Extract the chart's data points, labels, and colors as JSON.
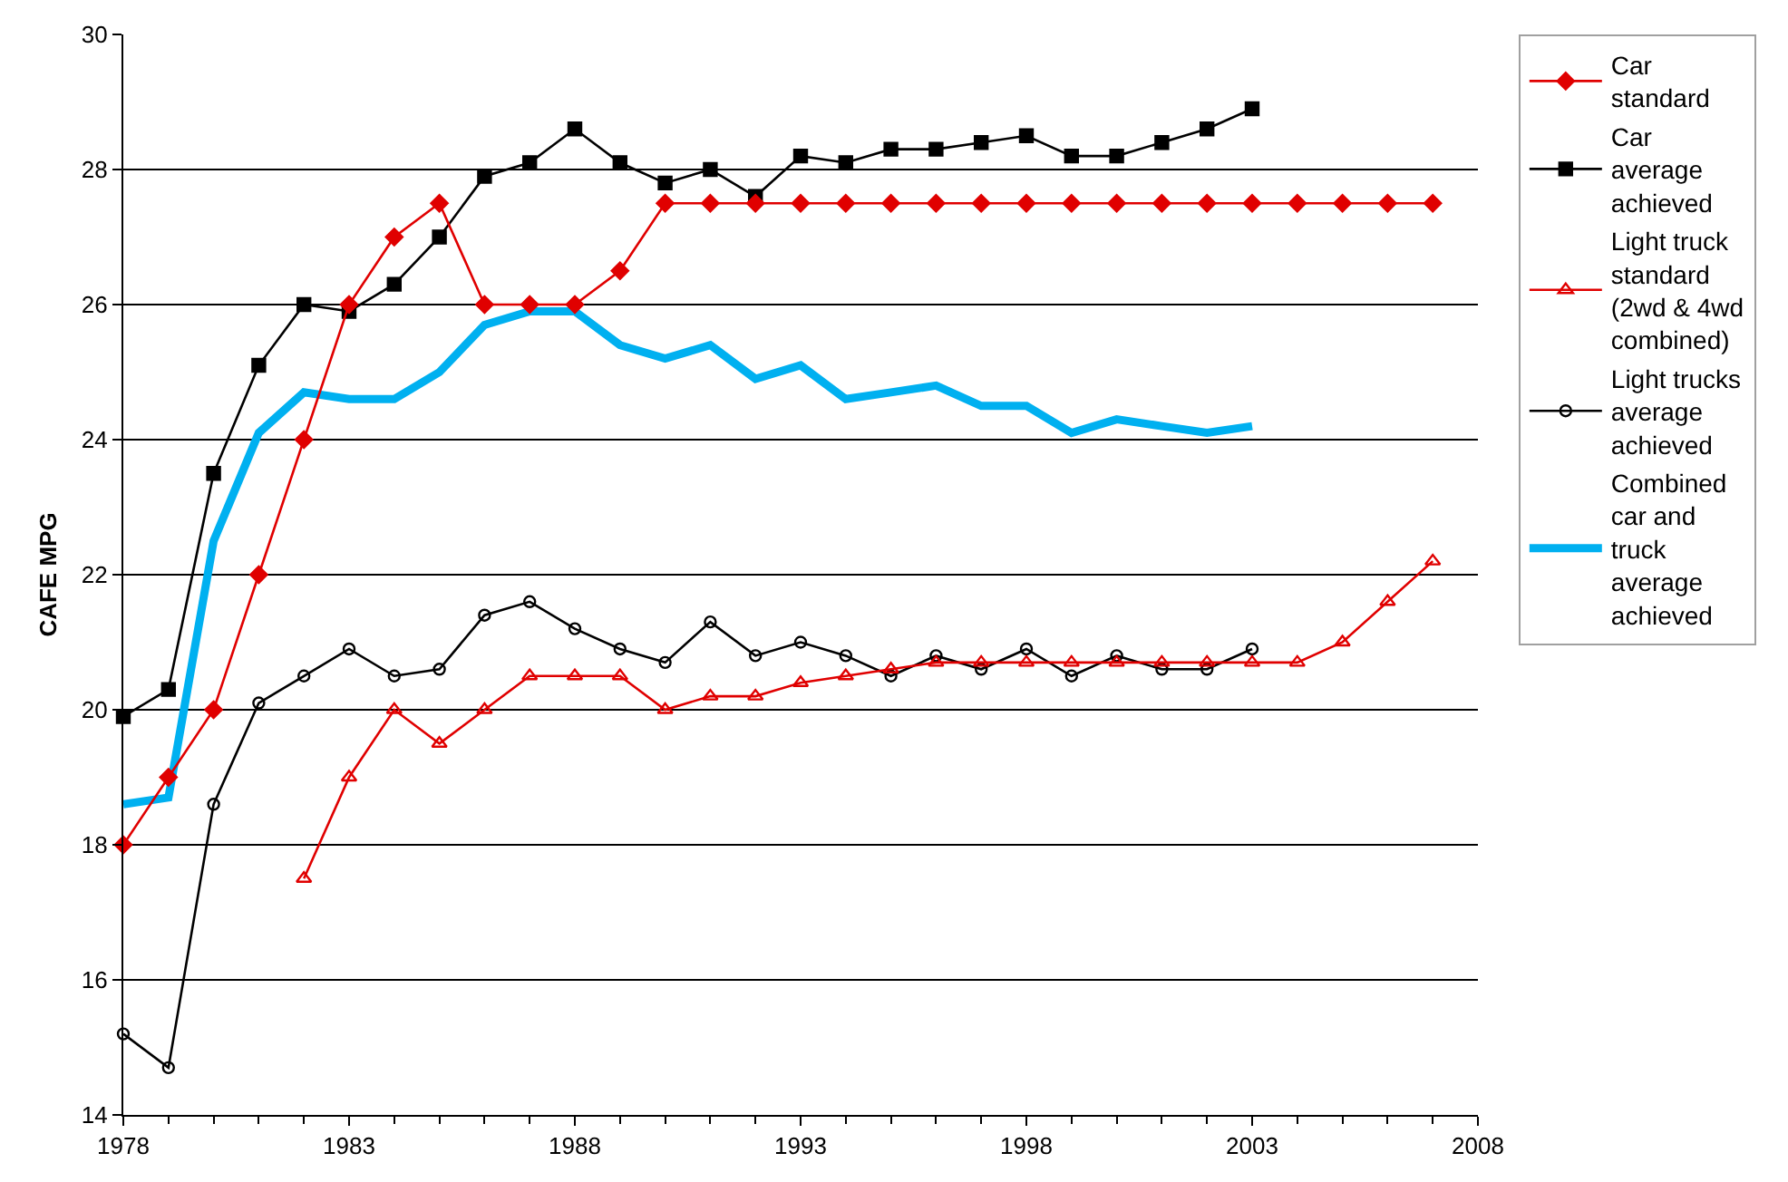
{
  "chart_data": {
    "type": "line",
    "ylabel": "CAFE MPG",
    "xlim": [
      1978,
      2008
    ],
    "xticks": [
      1978,
      1983,
      1988,
      1993,
      1998,
      2003,
      2008
    ],
    "ylim": [
      14,
      30
    ],
    "yticks": [
      14,
      16,
      18,
      20,
      22,
      24,
      26,
      28,
      30
    ],
    "grid": "y",
    "legend": "right",
    "line_style": "solid",
    "series": [
      {
        "name": "Car\nstandard",
        "color": "#e00000",
        "marker": "diamond",
        "x": [
          1978,
          1979,
          1980,
          1981,
          1982,
          1983,
          1984,
          1985,
          1986,
          1987,
          1988,
          1989,
          1990,
          1991,
          1992,
          1993,
          1994,
          1995,
          1996,
          1997,
          1998,
          1999,
          2000,
          2001,
          2002,
          2003,
          2004,
          2005,
          2006,
          2007
        ],
        "values": [
          18,
          19,
          20,
          22,
          24,
          26,
          27,
          27.5,
          26,
          26,
          26,
          26.5,
          27.5,
          27.5,
          27.5,
          27.5,
          27.5,
          27.5,
          27.5,
          27.5,
          27.5,
          27.5,
          27.5,
          27.5,
          27.5,
          27.5,
          27.5,
          27.5,
          27.5,
          27.5
        ]
      },
      {
        "name": "Car\naverage\nachieved",
        "color": "#000000",
        "marker": "square",
        "x": [
          1978,
          1979,
          1980,
          1981,
          1982,
          1983,
          1984,
          1985,
          1986,
          1987,
          1988,
          1989,
          1990,
          1991,
          1992,
          1993,
          1994,
          1995,
          1996,
          1997,
          1998,
          1999,
          2000,
          2001,
          2002,
          2003
        ],
        "values": [
          19.9,
          20.3,
          23.5,
          25.1,
          26,
          25.9,
          26.3,
          27,
          27.9,
          28.1,
          28.6,
          28.1,
          27.8,
          28,
          27.6,
          28.2,
          28.1,
          28.3,
          28.3,
          28.4,
          28.5,
          28.2,
          28.2,
          28.4,
          28.6,
          28.9
        ]
      },
      {
        "name": "Light truck\nstandard\n(2wd & 4wd\ncombined)",
        "color": "#e00000",
        "marker": "triangle",
        "x": [
          1982,
          1983,
          1984,
          1985,
          1986,
          1987,
          1988,
          1989,
          1990,
          1991,
          1992,
          1993,
          1994,
          1995,
          1996,
          1997,
          1998,
          1999,
          2000,
          2001,
          2002,
          2003,
          2004,
          2005,
          2006,
          2007
        ],
        "values": [
          17.5,
          19,
          20,
          19.5,
          20,
          20.5,
          20.5,
          20.5,
          20,
          20.2,
          20.2,
          20.4,
          20.5,
          20.6,
          20.7,
          20.7,
          20.7,
          20.7,
          20.7,
          20.7,
          20.7,
          20.7,
          20.7,
          21,
          21.6,
          22.2
        ]
      },
      {
        "name": "Light trucks\naverage\nachieved",
        "color": "#000000",
        "marker": "circle",
        "x": [
          1978,
          1979,
          1980,
          1981,
          1982,
          1983,
          1984,
          1985,
          1986,
          1987,
          1988,
          1989,
          1990,
          1991,
          1992,
          1993,
          1994,
          1995,
          1996,
          1997,
          1998,
          1999,
          2000,
          2001,
          2002,
          2003
        ],
        "values": [
          15.2,
          14.7,
          18.6,
          20.1,
          20.5,
          20.9,
          20.5,
          20.6,
          21.4,
          21.6,
          21.2,
          20.9,
          20.7,
          21.3,
          20.8,
          21,
          20.8,
          20.5,
          20.8,
          20.6,
          20.9,
          20.5,
          20.8,
          20.6,
          20.6,
          20.9
        ]
      },
      {
        "name": "Combined\ncar and\ntruck\naverage\nachieved",
        "color": "#00b0f0",
        "marker": "none",
        "x": [
          1978,
          1979,
          1980,
          1981,
          1982,
          1983,
          1984,
          1985,
          1986,
          1987,
          1988,
          1989,
          1990,
          1991,
          1992,
          1993,
          1994,
          1995,
          1996,
          1997,
          1998,
          1999,
          2000,
          2001,
          2002,
          2003
        ],
        "values": [
          18.6,
          18.7,
          22.5,
          24.1,
          24.7,
          24.6,
          24.6,
          25,
          25.7,
          25.9,
          25.9,
          25.4,
          25.2,
          25.4,
          24.9,
          25.1,
          24.6,
          24.7,
          24.8,
          24.5,
          24.5,
          24.1,
          24.3,
          24.2,
          24.1,
          24.2
        ]
      }
    ]
  }
}
